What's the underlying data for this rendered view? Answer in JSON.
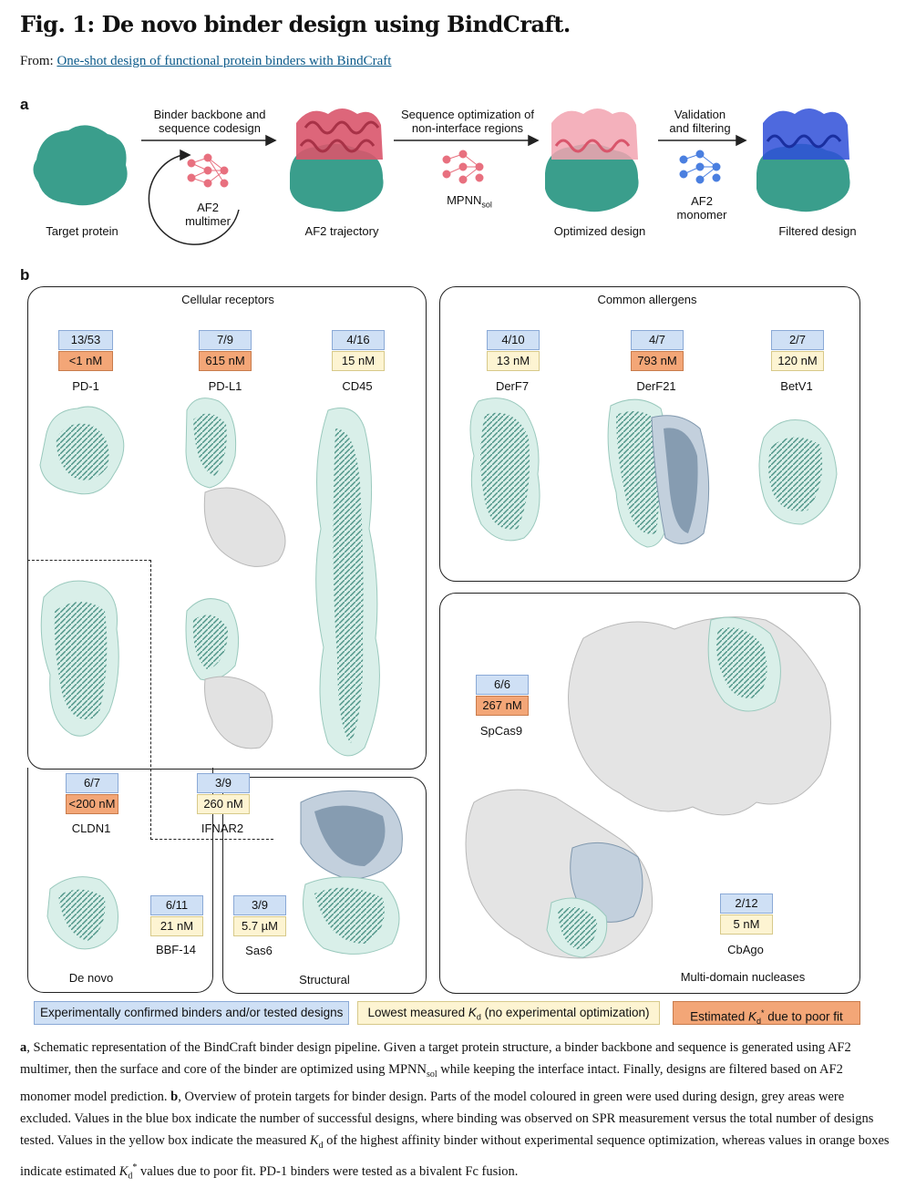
{
  "figure_title": "Fig. 1: De novo binder design using BindCraft.",
  "source_prefix": "From: ",
  "source_link": "One-shot design of functional protein binders with BindCraft",
  "panel_a": {
    "label": "a",
    "stage1_arrow": "Binder backbone and sequence codesign",
    "stage1_line1": "Binder backbone and",
    "stage1_line2": "sequence codesign",
    "af2_multimer_line1": "AF2",
    "af2_multimer_line2": "multimer",
    "stage2_line1": "Sequence optimization of",
    "stage2_line2": "non-interface regions",
    "mpnn": "MPNN",
    "mpnn_sub": "sol",
    "stage3_line1": "Validation",
    "stage3_line2": "and filtering",
    "af2_monomer_line1": "AF2",
    "af2_monomer_line2": "monomer",
    "target_protein": "Target protein",
    "af2_trajectory": "AF2 trajectory",
    "optimized_design": "Optimized design",
    "filtered_design": "Filtered design"
  },
  "panel_b": {
    "label": "b",
    "cellular_receptors": "Cellular receptors",
    "common_allergens": "Common allergens",
    "de_novo": "De novo",
    "structural": "Structural",
    "multi_domain": "Multi-domain nucleases",
    "targets": {
      "pd1": {
        "name": "PD-1",
        "ratio": "13/53",
        "kd": "<1 nM"
      },
      "pdl1": {
        "name": "PD-L1",
        "ratio": "7/9",
        "kd": "615 nM"
      },
      "cd45": {
        "name": "CD45",
        "ratio": "4/16",
        "kd": "15 nM"
      },
      "derf7": {
        "name": "DerF7",
        "ratio": "4/10",
        "kd": "13 nM"
      },
      "derf21": {
        "name": "DerF21",
        "ratio": "4/7",
        "kd": "793 nM"
      },
      "betv1": {
        "name": "BetV1",
        "ratio": "2/7",
        "kd": "120 nM"
      },
      "cldn1": {
        "name": "CLDN1",
        "ratio": "6/7",
        "kd": "<200 nM"
      },
      "ifnar2": {
        "name": "IFNAR2",
        "ratio": "3/9",
        "kd": "260 nM"
      },
      "spcas9": {
        "name": "SpCas9",
        "ratio": "6/6",
        "kd": "267 nM"
      },
      "bbf14": {
        "name": "BBF-14",
        "ratio": "6/11",
        "kd": "21 nM"
      },
      "sas6": {
        "name": "Sas6",
        "ratio": "3/9",
        "kd": "5.7 µM"
      },
      "cbago": {
        "name": "CbAgo",
        "ratio": "2/12",
        "kd": "5 nM"
      }
    }
  },
  "legend": {
    "blue": "Experimentally confirmed binders and/or tested designs",
    "yellow_pre": "Lowest measured ",
    "yellow_k": "K",
    "yellow_sub": "d",
    "yellow_post": " (no experimental optimization)",
    "orange_pre": "Estimated ",
    "orange_k": "K",
    "orange_sub": "d",
    "orange_sup": "*",
    "orange_post": " due to poor fit"
  },
  "caption": {
    "a_label": "a",
    "a_text1": ", Schematic representation of the BindCraft binder design pipeline. Given a target protein structure, a binder backbone and sequence is generated using AF2 multimer, then the surface and core of the binder are optimized using MPNN",
    "a_sub": "sol",
    "a_text2": " while keeping the interface intact. Finally, designs are filtered based on AF2 monomer model prediction. ",
    "b_label": "b",
    "b_text1": ", Overview of protein targets for binder design. Parts of the model coloured in green were used during design, grey areas were excluded. Values in the blue box indicate the number of successful designs, where binding was observed on SPR measurement versus the total number of designs tested. Values in the yellow box indicate the measured ",
    "b_k1": "K",
    "b_sub1": "d",
    "b_text2": " of the highest affinity binder without experimental sequence optimization, whereas values in orange boxes indicate estimated ",
    "b_k2": "K",
    "b_sub2": "d",
    "b_sup2": "*",
    "b_text3": " values due to poor fit. PD-1 binders were tested as a bivalent Fc fusion."
  },
  "colors": {
    "target_teal": "#3a9e8c",
    "binder_red": "#d9556b",
    "binder_pink": "#f2a3b0",
    "binder_blue": "#2f4fd8",
    "node_pink": "#e8707f",
    "node_blue": "#4a7fe0",
    "grey_excluded": "#d4d4d4",
    "slate_blue": "#5e7a95",
    "box_blue": "#cfe0f5",
    "box_yellow": "#fdf4d2",
    "box_orange": "#f3a677"
  }
}
